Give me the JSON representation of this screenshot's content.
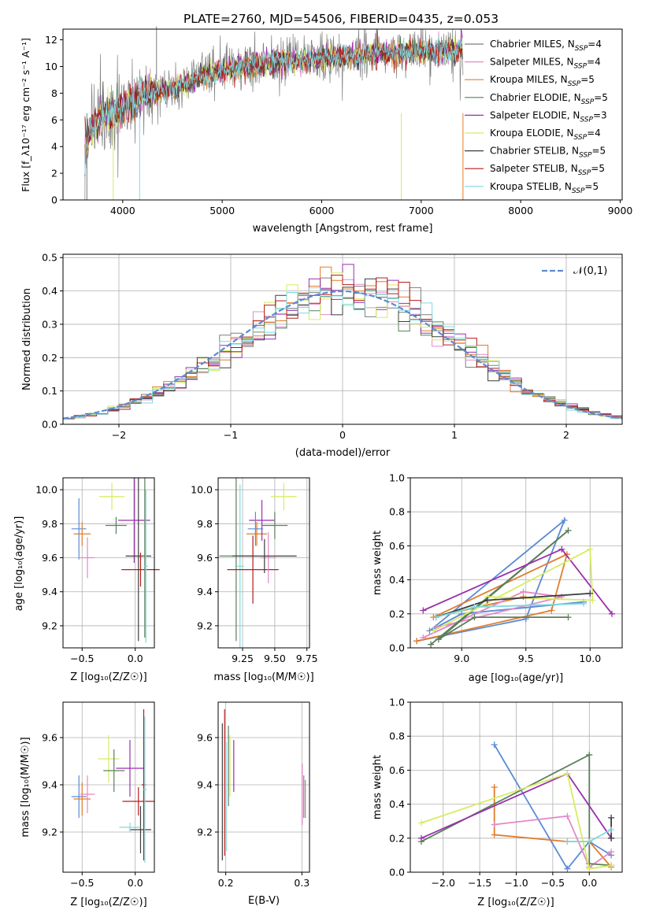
{
  "figure": {
    "title": "PLATE=2760, MJD=54506, FIBERID=0435, z=0.053",
    "palette": [
      "#7f7f7f",
      "#e389c7",
      "#e07d2c",
      "#5a7f5a",
      "#9a2fae",
      "#d6ec62",
      "#3d3d3d",
      "#b81c1c",
      "#7fd9de"
    ]
  },
  "chart_data": [
    {
      "id": "spectrum",
      "type": "line",
      "xlabel": "wavelength [Angstrom, rest frame]",
      "ylabel": "Flux [f_λ10⁻¹⁷ erg cm⁻² s⁻¹ A⁻¹]",
      "xlim": [
        3400,
        9020
      ],
      "ylim": [
        0,
        12.8
      ],
      "xticks": [
        4000,
        5000,
        6000,
        7000,
        8000,
        9000
      ],
      "yticks": [
        0,
        2,
        4,
        6,
        8,
        10,
        12
      ],
      "grid": false,
      "legend_position": "upper-right",
      "series": [
        {
          "name": "Chabrier MILES, N_SSP=4",
          "label_main": "Chabrier MILES, N",
          "label_sub": "SSP",
          "label_tail": "=4",
          "color": "#7f7f7f"
        },
        {
          "name": "Salpeter MILES, N_SSP=4",
          "label_main": "Salpeter MILES, N",
          "label_sub": "SSP",
          "label_tail": "=4",
          "color": "#e389c7"
        },
        {
          "name": "Kroupa MILES, N_SSP=5",
          "label_main": "Kroupa MILES, N",
          "label_sub": "SSP",
          "label_tail": "=5",
          "color": "#e07d2c"
        },
        {
          "name": "Chabrier ELODIE, N_SSP=5",
          "label_main": "Chabrier ELODIE, N",
          "label_sub": "SSP",
          "label_tail": "=5",
          "color": "#5a7f5a"
        },
        {
          "name": "Salpeter ELODIE, N_SSP=3",
          "label_main": "Salpeter ELODIE, N",
          "label_sub": "SSP",
          "label_tail": "=3",
          "color": "#9a2fae"
        },
        {
          "name": "Kroupa ELODIE, N_SSP=4",
          "label_main": "Kroupa ELODIE, N",
          "label_sub": "SSP",
          "label_tail": "=4",
          "color": "#d6ec62"
        },
        {
          "name": "Chabrier STELIB, N_SSP=5",
          "label_main": "Chabrier STELIB, N",
          "label_sub": "SSP",
          "label_tail": "=5",
          "color": "#3d3d3d"
        },
        {
          "name": "Salpeter STELIB, N_SSP=5",
          "label_main": "Salpeter STELIB, N",
          "label_sub": "SSP",
          "label_tail": "=5",
          "color": "#b81c1c"
        },
        {
          "name": "Kroupa STELIB, N_SSP=5",
          "label_main": "Kroupa STELIB, N",
          "label_sub": "SSP",
          "label_tail": "=5",
          "color": "#7fd9de"
        }
      ],
      "continuum": {
        "x": [
          3620,
          3700,
          3800,
          3900,
          4000,
          4100,
          4200,
          4400,
          4600,
          4800,
          5000,
          5200,
          5500,
          5800,
          6000,
          6300,
          6600,
          6900,
          7200,
          7400
        ],
        "y": [
          4.0,
          5.5,
          6.2,
          6.6,
          6.8,
          7.2,
          7.8,
          8.2,
          8.7,
          9.3,
          9.7,
          10.0,
          10.3,
          10.5,
          10.6,
          10.8,
          11.0,
          11.1,
          11.2,
          11.2
        ]
      }
    },
    {
      "id": "residuals",
      "type": "histogram",
      "xlabel": "(data-model)/error",
      "ylabel": "Normed distribution",
      "xlim": [
        -2.5,
        2.5
      ],
      "ylim": [
        0,
        0.51
      ],
      "xticks": [
        -2,
        -1,
        0,
        1,
        2
      ],
      "yticks": [
        0.0,
        0.1,
        0.2,
        0.3,
        0.4,
        0.5
      ],
      "grid": true,
      "legend_position": "upper-right",
      "reference": {
        "name": "𝒩(0,1)",
        "color": "#5b8bd6",
        "style": "dashed"
      }
    },
    {
      "id": "z-vs-age",
      "type": "errorbar",
      "xlabel": "Z [log₁₀(Z/Z☉)]",
      "ylabel": "age  [log₁₀(age/yr)]",
      "xlim": [
        -0.68,
        0.18
      ],
      "ylim": [
        9.07,
        10.07
      ],
      "xticks": [
        -0.5,
        0.0
      ],
      "yticks": [
        9.2,
        9.4,
        9.6,
        9.8,
        10.0
      ],
      "grid": true,
      "points": [
        {
          "x": -0.53,
          "y": 9.77,
          "xerr": 0.07,
          "yerr": 0.18,
          "color": "#5b8bd6"
        },
        {
          "x": -0.5,
          "y": 9.74,
          "xerr": 0.08,
          "yerr": 0.07,
          "color": "#e07d2c"
        },
        {
          "x": -0.45,
          "y": 9.6,
          "xerr": 0.07,
          "yerr": 0.12,
          "color": "#e389c7"
        },
        {
          "x": -0.22,
          "y": 9.96,
          "xerr": 0.12,
          "yerr": 0.08,
          "color": "#d6ec62"
        },
        {
          "x": -0.18,
          "y": 9.79,
          "xerr": 0.1,
          "yerr": 0.05,
          "color": "#5a7f5a"
        },
        {
          "x": -0.01,
          "y": 9.82,
          "xerr": 0.15,
          "yerr": 0.25,
          "color": "#9a2fae"
        },
        {
          "x": 0.03,
          "y": 9.61,
          "xerr": 0.12,
          "yerr": 0.5,
          "color": "#3d3d3d"
        },
        {
          "x": 0.05,
          "y": 9.53,
          "xerr": 0.18,
          "yerr": 0.1,
          "color": "#b81c1c"
        },
        {
          "x": 0.09,
          "y": 9.61,
          "xerr": 0.02,
          "yerr": 0.48,
          "color": "#5a7f5a"
        },
        {
          "x": 0.1,
          "y": 9.55,
          "xerr": 0.02,
          "yerr": 0.45,
          "color": "#7fd9de"
        }
      ]
    },
    {
      "id": "mass-vs-age",
      "type": "errorbar",
      "xlabel": "mass [log₁₀(M/M☉)]",
      "ylabel": "",
      "xlim": [
        9.06,
        9.77
      ],
      "ylim": [
        9.07,
        10.07
      ],
      "xticks": [
        9.25,
        9.5,
        9.75
      ],
      "yticks": [
        9.2,
        9.4,
        9.6,
        9.8,
        10.0
      ],
      "grid": true,
      "points": [
        {
          "x": 9.2,
          "y": 9.61,
          "xerr": 0.13,
          "yerr": 0.5,
          "color": "#5a7f5a"
        },
        {
          "x": 9.23,
          "y": 9.55,
          "xerr": 0.03,
          "yerr": 0.48,
          "color": "#7fd9de"
        },
        {
          "x": 9.33,
          "y": 9.53,
          "xerr": 0.2,
          "yerr": 0.2,
          "color": "#b81c1c"
        },
        {
          "x": 9.36,
          "y": 9.74,
          "xerr": 0.08,
          "yerr": 0.07,
          "color": "#e07d2c"
        },
        {
          "x": 9.4,
          "y": 9.82,
          "xerr": 0.1,
          "yerr": 0.12,
          "color": "#9a2fae"
        },
        {
          "x": 9.45,
          "y": 9.6,
          "xerr": 0.06,
          "yerr": 0.15,
          "color": "#e389c7"
        },
        {
          "x": 9.42,
          "y": 9.61,
          "xerr": 0.25,
          "yerr": 0.1,
          "color": "#3d3d3d"
        },
        {
          "x": 9.5,
          "y": 9.79,
          "xerr": 0.1,
          "yerr": 0.08,
          "color": "#5a7f5a"
        },
        {
          "x": 9.57,
          "y": 9.96,
          "xerr": 0.1,
          "yerr": 0.08,
          "color": "#d6ec62"
        },
        {
          "x": 9.35,
          "y": 9.77,
          "xerr": 0.06,
          "yerr": 0.1,
          "color": "#5b8bd6"
        }
      ]
    },
    {
      "id": "age-weights",
      "type": "line",
      "xlabel": "age  [log₁₀(age/yr)]",
      "ylabel": "mass weight",
      "xlim": [
        8.6,
        10.25
      ],
      "ylim": [
        0,
        1.0
      ],
      "xticks": [
        9.0,
        9.5,
        10.0
      ],
      "yticks": [
        0.0,
        0.2,
        0.4,
        0.6,
        0.8,
        1.0
      ],
      "grid": true,
      "series": [
        {
          "color": "#5b8bd6",
          "points": [
            [
              8.65,
              0.04
            ],
            [
              9.5,
              0.17
            ],
            [
              9.8,
              0.75
            ],
            [
              8.75,
              0.1
            ],
            [
              9.0,
              0.2
            ],
            [
              9.95,
              0.27
            ]
          ]
        },
        {
          "color": "#e07d2c",
          "points": [
            [
              8.65,
              0.04
            ],
            [
              9.7,
              0.22
            ],
            [
              9.82,
              0.55
            ],
            [
              8.78,
              0.18
            ],
            [
              9.48,
              0.3
            ]
          ]
        },
        {
          "color": "#e389c7",
          "points": [
            [
              8.7,
              0.06
            ],
            [
              9.48,
              0.33
            ],
            [
              9.78,
              0.3
            ],
            [
              8.8,
              0.12
            ]
          ]
        },
        {
          "color": "#5a7f5a",
          "points": [
            [
              8.76,
              0.02
            ],
            [
              9.83,
              0.69
            ],
            [
              8.82,
              0.05
            ],
            [
              9.1,
              0.18
            ],
            [
              9.83,
              0.18
            ]
          ]
        },
        {
          "color": "#9a2fae",
          "points": [
            [
              8.7,
              0.22
            ],
            [
              9.78,
              0.58
            ],
            [
              10.17,
              0.2
            ]
          ]
        },
        {
          "color": "#d6ec62",
          "points": [
            [
              8.78,
              0.1
            ],
            [
              10.0,
              0.58
            ],
            [
              10.02,
              0.28
            ],
            [
              9.2,
              0.3
            ]
          ]
        },
        {
          "color": "#3d3d3d",
          "points": [
            [
              8.8,
              0.18
            ],
            [
              9.2,
              0.28
            ],
            [
              10.0,
              0.32
            ]
          ]
        },
        {
          "color": "#7fd9de",
          "points": [
            [
              8.8,
              0.18
            ],
            [
              9.1,
              0.24
            ],
            [
              9.95,
              0.26
            ]
          ]
        }
      ]
    },
    {
      "id": "z-vs-mass",
      "type": "errorbar",
      "xlabel": "Z [log₁₀(Z/Z☉)]",
      "ylabel": "mass [log₁₀(M/M☉)]",
      "xlim": [
        -0.68,
        0.18
      ],
      "ylim": [
        9.03,
        9.75
      ],
      "xticks": [
        -0.5,
        0.0
      ],
      "yticks": [
        9.2,
        9.4,
        9.6
      ],
      "grid": true,
      "points": [
        {
          "x": -0.53,
          "y": 9.35,
          "xerr": 0.07,
          "yerr": 0.09,
          "color": "#5b8bd6"
        },
        {
          "x": -0.5,
          "y": 9.34,
          "xerr": 0.08,
          "yerr": 0.07,
          "color": "#e07d2c"
        },
        {
          "x": -0.45,
          "y": 9.36,
          "xerr": 0.07,
          "yerr": 0.08,
          "color": "#e389c7"
        },
        {
          "x": -0.25,
          "y": 9.51,
          "xerr": 0.1,
          "yerr": 0.1,
          "color": "#d6ec62"
        },
        {
          "x": -0.2,
          "y": 9.46,
          "xerr": 0.1,
          "yerr": 0.09,
          "color": "#5a7f5a"
        },
        {
          "x": -0.05,
          "y": 9.47,
          "xerr": 0.13,
          "yerr": 0.12,
          "color": "#9a2fae"
        },
        {
          "x": 0.03,
          "y": 9.33,
          "xerr": 0.15,
          "yerr": 0.06,
          "color": "#b81c1c"
        },
        {
          "x": 0.05,
          "y": 9.21,
          "xerr": 0.1,
          "yerr": 0.1,
          "color": "#3d3d3d"
        },
        {
          "x": 0.08,
          "y": 9.4,
          "xerr": 0.02,
          "yerr": 0.32,
          "color": "#b81c1c"
        },
        {
          "x": 0.09,
          "y": 9.38,
          "xerr": 0.02,
          "yerr": 0.31,
          "color": "#7fd9de"
        },
        {
          "x": -0.05,
          "y": 9.22,
          "xerr": 0.1,
          "yerr": 0.02,
          "color": "#7fd9de"
        }
      ]
    },
    {
      "id": "ebv-vs-mass",
      "type": "errorbar",
      "xlabel": "E(B-V)",
      "ylabel": "",
      "xlim": [
        0.19,
        0.31
      ],
      "ylim": [
        9.03,
        9.75
      ],
      "xticks": [
        0.2,
        0.3
      ],
      "yticks": [
        9.2,
        9.4,
        9.6
      ],
      "grid": true,
      "points": [
        {
          "x": 0.1955,
          "y": 9.37,
          "xerr": 0,
          "yerr": 0.29,
          "color": "#3d3d3d"
        },
        {
          "x": 0.1985,
          "y": 9.41,
          "xerr": 0,
          "yerr": 0.31,
          "color": "#b81c1c"
        },
        {
          "x": 0.2005,
          "y": 9.35,
          "xerr": 0,
          "yerr": 0.23,
          "color": "#7fd9de"
        },
        {
          "x": 0.2035,
          "y": 9.48,
          "xerr": 0,
          "yerr": 0.17,
          "color": "#5a7f5a"
        },
        {
          "x": 0.2055,
          "y": 9.48,
          "xerr": 0,
          "yerr": 0.13,
          "color": "#d6ec62"
        },
        {
          "x": 0.2105,
          "y": 9.48,
          "xerr": 0,
          "yerr": 0.11,
          "color": "#9a2fae"
        },
        {
          "x": 0.3005,
          "y": 9.36,
          "xerr": 0,
          "yerr": 0.13,
          "color": "#e389c7"
        },
        {
          "x": 0.3025,
          "y": 9.35,
          "xerr": 0,
          "yerr": 0.09,
          "color": "#5b8bd6"
        },
        {
          "x": 0.3045,
          "y": 9.34,
          "xerr": 0,
          "yerr": 0.08,
          "color": "#e07d2c"
        }
      ]
    },
    {
      "id": "z-weights",
      "type": "line",
      "xlabel": "Z [log₁₀(Z/Z☉)]",
      "ylabel": "mass weight",
      "xlim": [
        -2.45,
        0.45
      ],
      "ylim": [
        0,
        1.0
      ],
      "xticks": [
        -2.0,
        -1.5,
        -1.0,
        -0.5,
        0.0
      ],
      "yticks": [
        0.0,
        0.2,
        0.4,
        0.6,
        0.8,
        1.0
      ],
      "grid": true,
      "series": [
        {
          "color": "#5b8bd6",
          "points": [
            [
              -1.3,
              0.75
            ],
            [
              -0.3,
              0.02
            ],
            [
              0.0,
              0.18
            ],
            [
              0.3,
              0.1
            ]
          ]
        },
        {
          "color": "#e07d2c",
          "points": [
            [
              -1.3,
              0.5
            ],
            [
              -1.3,
              0.22
            ],
            [
              -0.3,
              0.18
            ],
            [
              0.0,
              0.18
            ],
            [
              0.3,
              0.03
            ]
          ]
        },
        {
          "color": "#e389c7",
          "points": [
            [
              -1.3,
              0.28
            ],
            [
              -0.3,
              0.33
            ],
            [
              0.0,
              0.03
            ],
            [
              0.3,
              0.12
            ]
          ]
        },
        {
          "color": "#5a7f5a",
          "points": [
            [
              -2.3,
              0.18
            ],
            [
              0.0,
              0.69
            ],
            [
              0.0,
              0.05
            ],
            [
              0.3,
              0.04
            ]
          ]
        },
        {
          "color": "#9a2fae",
          "points": [
            [
              -2.3,
              0.2
            ],
            [
              -0.3,
              0.58
            ],
            [
              0.3,
              0.2
            ]
          ]
        },
        {
          "color": "#d6ec62",
          "points": [
            [
              -2.3,
              0.29
            ],
            [
              -0.3,
              0.58
            ],
            [
              0.0,
              0.02
            ],
            [
              0.3,
              0.04
            ]
          ]
        },
        {
          "color": "#3d3d3d",
          "points": [
            [
              0.3,
              0.32
            ],
            [
              0.3,
              0.2
            ]
          ]
        },
        {
          "color": "#7fd9de",
          "points": [
            [
              -0.3,
              0.18
            ],
            [
              0.0,
              0.18
            ],
            [
              0.3,
              0.25
            ]
          ]
        }
      ]
    }
  ]
}
